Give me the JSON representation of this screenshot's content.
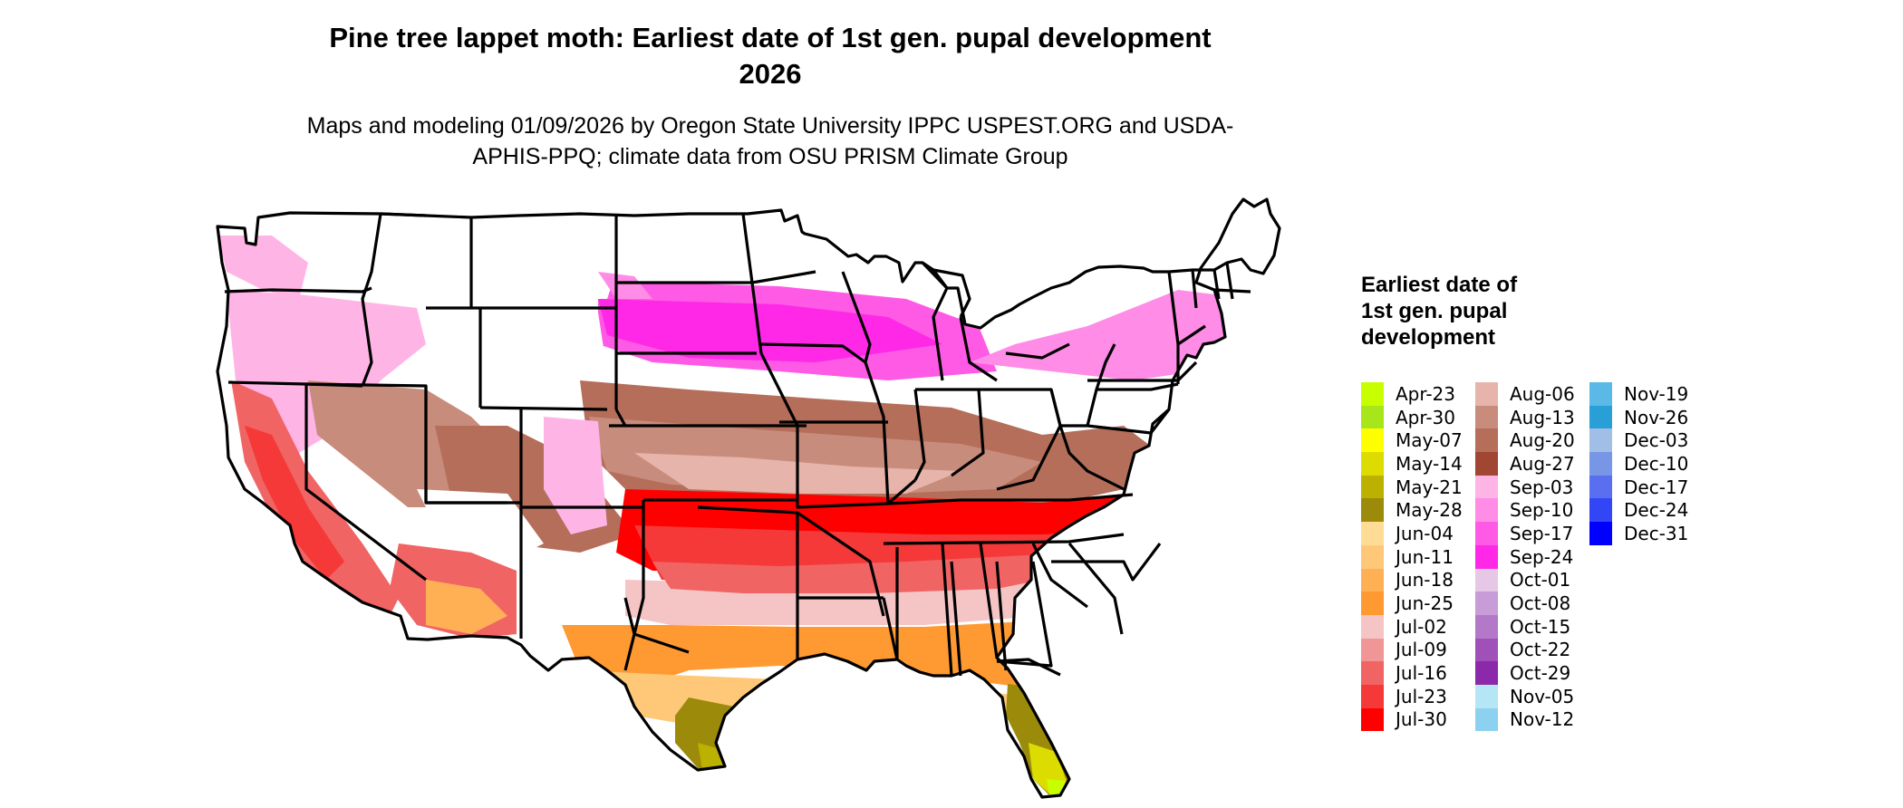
{
  "title": "Pine tree lappet moth: Earliest date of 1st gen. pupal development 2026",
  "subtitle": "Maps and modeling 01/09/2026 by Oregon State University IPPC USPEST.ORG and USDA-APHIS-PPQ; climate data from OSU PRISM Climate Group",
  "legend": {
    "title": "Earliest date of 1st gen. pupal development",
    "items": [
      {
        "label": "Apr-23",
        "color": "#c8ff00"
      },
      {
        "label": "Apr-30",
        "color": "#a8e61c"
      },
      {
        "label": "May-07",
        "color": "#ffff00"
      },
      {
        "label": "May-14",
        "color": "#dcdc00"
      },
      {
        "label": "May-21",
        "color": "#bcb000"
      },
      {
        "label": "May-28",
        "color": "#9c8a0a"
      },
      {
        "label": "Jun-04",
        "color": "#ffdc96"
      },
      {
        "label": "Jun-11",
        "color": "#ffc878"
      },
      {
        "label": "Jun-18",
        "color": "#ffb055"
      },
      {
        "label": "Jun-25",
        "color": "#ff9a32"
      },
      {
        "label": "Jul-02",
        "color": "#f5c4c4"
      },
      {
        "label": "Jul-09",
        "color": "#f09696"
      },
      {
        "label": "Jul-16",
        "color": "#f06464"
      },
      {
        "label": "Jul-23",
        "color": "#f53838"
      },
      {
        "label": "Jul-30",
        "color": "#ff0000"
      },
      {
        "label": "Aug-06",
        "color": "#e6b4aa"
      },
      {
        "label": "Aug-13",
        "color": "#c88c7c"
      },
      {
        "label": "Aug-20",
        "color": "#b46e5a"
      },
      {
        "label": "Aug-27",
        "color": "#a04632"
      },
      {
        "label": "Sep-03",
        "color": "#ffb4e6"
      },
      {
        "label": "Sep-10",
        "color": "#ff8ce6"
      },
      {
        "label": "Sep-17",
        "color": "#ff5ae6"
      },
      {
        "label": "Sep-24",
        "color": "#ff28e6"
      },
      {
        "label": "Oct-01",
        "color": "#e6c8e6"
      },
      {
        "label": "Oct-08",
        "color": "#c89cd7"
      },
      {
        "label": "Oct-15",
        "color": "#b478c8"
      },
      {
        "label": "Oct-22",
        "color": "#a050b9"
      },
      {
        "label": "Oct-29",
        "color": "#8c28aa"
      },
      {
        "label": "Nov-05",
        "color": "#b4e6f5"
      },
      {
        "label": "Nov-12",
        "color": "#8cd2f0"
      },
      {
        "label": "Nov-19",
        "color": "#5ab9e6"
      },
      {
        "label": "Nov-26",
        "color": "#28a0d7"
      },
      {
        "label": "Dec-03",
        "color": "#a0bee6"
      },
      {
        "label": "Dec-10",
        "color": "#7896e6"
      },
      {
        "label": "Dec-17",
        "color": "#5a6ef0"
      },
      {
        "label": "Dec-24",
        "color": "#3246f5"
      },
      {
        "label": "Dec-31",
        "color": "#0000ff"
      }
    ]
  }
}
